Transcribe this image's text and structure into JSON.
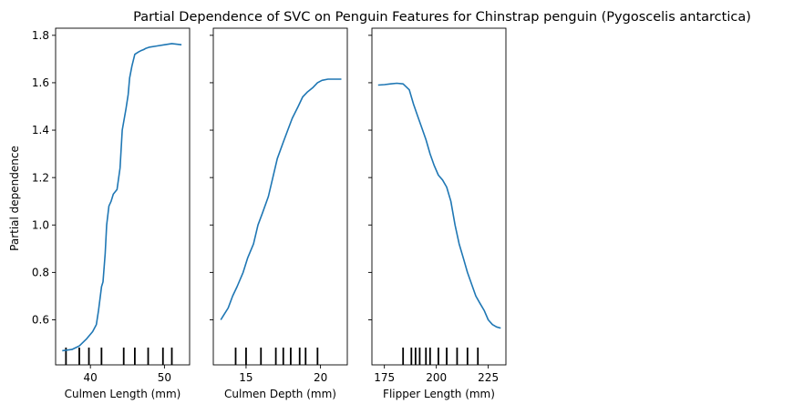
{
  "chart_data": {
    "type": "line",
    "title": "Partial Dependence of SVC on Penguin Features for Chinstrap penguin (Pygoscelis antarctica)",
    "ylabel": "Partial dependence",
    "ylim": [
      0.41,
      1.83
    ],
    "yticks": [
      0.6,
      0.8,
      1.0,
      1.2,
      1.4,
      1.6,
      1.8
    ],
    "line_color": "#1f77b4",
    "rug_color": "#000000",
    "panels": [
      {
        "xlabel": "Culmen Length (mm)",
        "xlim": [
          35.3,
          53.4
        ],
        "xticks": [
          40,
          50
        ],
        "x": [
          36.2,
          37.5,
          38.5,
          39.5,
          40.3,
          40.8,
          41.1,
          41.5,
          41.7,
          42.0,
          42.2,
          42.5,
          42.8,
          43.1,
          43.6,
          44.0,
          44.3,
          44.8,
          45.1,
          45.3,
          45.6,
          46.0,
          46.5,
          46.8,
          47.2,
          47.5,
          48.0,
          49.0,
          50.0,
          51.0,
          52.3
        ],
        "y": [
          0.47,
          0.475,
          0.49,
          0.52,
          0.55,
          0.58,
          0.64,
          0.74,
          0.76,
          0.88,
          1.0,
          1.08,
          1.1,
          1.13,
          1.15,
          1.24,
          1.4,
          1.49,
          1.55,
          1.62,
          1.67,
          1.72,
          1.73,
          1.735,
          1.74,
          1.745,
          1.75,
          1.755,
          1.76,
          1.765,
          1.76
        ],
        "rug": [
          36.7,
          38.5,
          39.8,
          41.5,
          44.5,
          46.0,
          47.8,
          49.8,
          51.0
        ]
      },
      {
        "xlabel": "Culmen Depth (mm)",
        "xlim": [
          12.8,
          21.8
        ],
        "xticks": [
          15,
          20
        ],
        "x": [
          13.3,
          13.5,
          13.8,
          14.1,
          14.4,
          14.8,
          15.1,
          15.5,
          15.8,
          16.1,
          16.5,
          16.8,
          17.1,
          17.5,
          17.8,
          18.1,
          18.5,
          18.8,
          19.1,
          19.5,
          19.8,
          20.1,
          20.5,
          21.4
        ],
        "y": [
          0.6,
          0.62,
          0.65,
          0.7,
          0.74,
          0.8,
          0.86,
          0.92,
          1.0,
          1.05,
          1.12,
          1.2,
          1.28,
          1.35,
          1.4,
          1.45,
          1.5,
          1.54,
          1.56,
          1.58,
          1.6,
          1.61,
          1.615,
          1.615
        ],
        "rug": [
          14.3,
          15.0,
          16.0,
          17.0,
          17.5,
          18.0,
          18.6,
          19.0,
          19.8
        ]
      },
      {
        "xlabel": "Flipper Length (mm)",
        "xlim": [
          169,
          233.5
        ],
        "xticks": [
          175,
          200,
          225
        ],
        "x": [
          172,
          175,
          178,
          181,
          184,
          187,
          189,
          191,
          193,
          195,
          197,
          199,
          201,
          203,
          205,
          207,
          209,
          211,
          213,
          215,
          217,
          219,
          221,
          223,
          225,
          227,
          229,
          231
        ],
        "y": [
          1.59,
          1.592,
          1.595,
          1.598,
          1.595,
          1.57,
          1.51,
          1.46,
          1.41,
          1.36,
          1.3,
          1.25,
          1.21,
          1.19,
          1.16,
          1.1,
          1.0,
          0.92,
          0.86,
          0.8,
          0.75,
          0.7,
          0.67,
          0.64,
          0.6,
          0.58,
          0.57,
          0.565
        ],
        "rug": [
          184,
          188,
          190,
          192,
          195,
          197,
          201,
          205,
          210,
          215,
          220
        ]
      }
    ]
  }
}
